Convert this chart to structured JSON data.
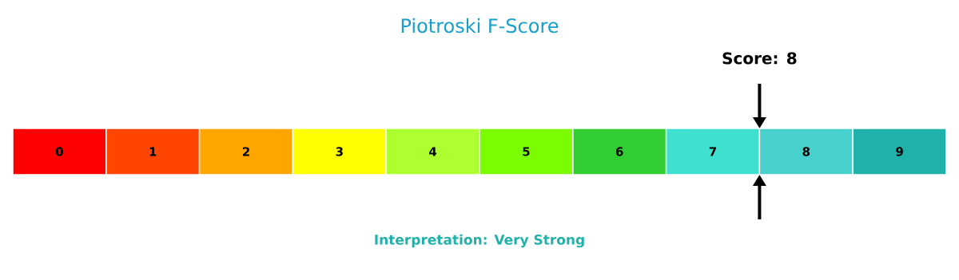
{
  "chart_data": {
    "type": "heatmap",
    "title": "Piotroski F-Score",
    "categories": [
      null,
      null,
      null,
      null,
      null,
      null,
      null,
      null,
      null,
      null
    ],
    "y_categories": [
      null
    ],
    "cells": [
      [
        0,
        1,
        2,
        3,
        4,
        5,
        6,
        7,
        8,
        9
      ]
    ],
    "data_labels": true,
    "colors": [
      "#ff0000",
      "#ff4500",
      "#ffa500",
      "#ffff00",
      "#adff2f",
      "#7cfc00",
      "#32cd32",
      "#40e0d0",
      "#48d1cc",
      "#20b2aa"
    ],
    "annotations": [
      "Score: 8",
      "Interpretation: Very Strong"
    ]
  }
}
